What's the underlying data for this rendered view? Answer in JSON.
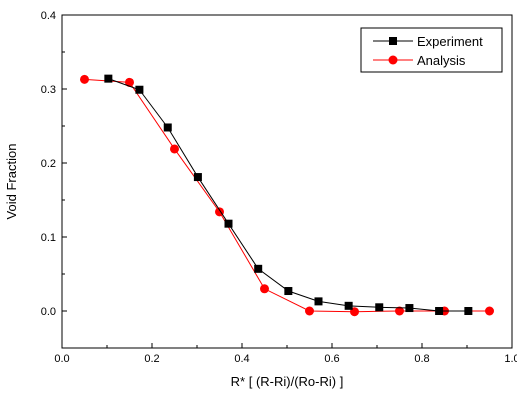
{
  "chart_data": {
    "type": "line",
    "xlabel": "R* [ (R-Ri)/(Ro-Ri) ]",
    "ylabel": "Void Fraction",
    "xlim": [
      0.0,
      1.0
    ],
    "ylim": [
      -0.05,
      0.4
    ],
    "xticks": [
      "0.0",
      "0.2",
      "0.4",
      "0.6",
      "0.8",
      "1.0"
    ],
    "yticks": [
      "0.0",
      "0.1",
      "0.2",
      "0.3",
      "0.4"
    ],
    "xtick_values": [
      0.0,
      0.2,
      0.4,
      0.6,
      0.8,
      1.0
    ],
    "ytick_values": [
      0.0,
      0.1,
      0.2,
      0.3,
      0.4
    ],
    "grid": false,
    "legend_position": "top-right",
    "series": [
      {
        "name": "Experiment",
        "color": "#000000",
        "marker": "square",
        "x": [
          0.103,
          0.172,
          0.235,
          0.302,
          0.37,
          0.436,
          0.503,
          0.57,
          0.637,
          0.705,
          0.772,
          0.838,
          0.903
        ],
        "y": [
          0.314,
          0.299,
          0.248,
          0.181,
          0.118,
          0.057,
          0.027,
          0.013,
          0.007,
          0.005,
          0.004,
          0.0,
          0.0
        ]
      },
      {
        "name": "Analysis",
        "color": "#ff0000",
        "marker": "circle",
        "x": [
          0.05,
          0.15,
          0.25,
          0.35,
          0.45,
          0.55,
          0.65,
          0.75,
          0.85,
          0.95
        ],
        "y": [
          0.313,
          0.309,
          0.219,
          0.134,
          0.03,
          0.0,
          -0.001,
          0.0,
          0.0,
          0.0
        ]
      }
    ]
  }
}
